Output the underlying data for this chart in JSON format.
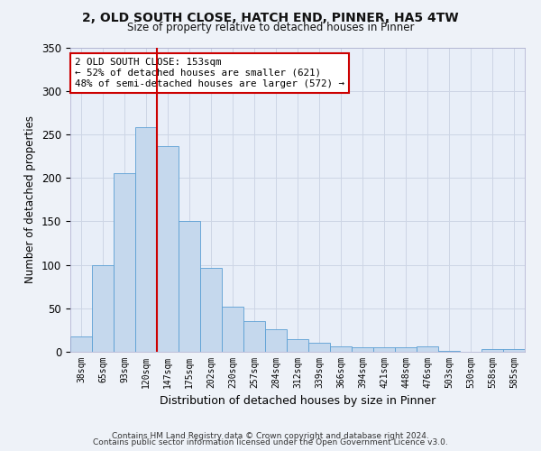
{
  "title_line1": "2, OLD SOUTH CLOSE, HATCH END, PINNER, HA5 4TW",
  "title_line2": "Size of property relative to detached houses in Pinner",
  "xlabel": "Distribution of detached houses by size in Pinner",
  "ylabel": "Number of detached properties",
  "categories": [
    "38sqm",
    "65sqm",
    "93sqm",
    "120sqm",
    "147sqm",
    "175sqm",
    "202sqm",
    "230sqm",
    "257sqm",
    "284sqm",
    "312sqm",
    "339sqm",
    "366sqm",
    "394sqm",
    "421sqm",
    "448sqm",
    "476sqm",
    "503sqm",
    "530sqm",
    "558sqm",
    "585sqm"
  ],
  "values": [
    18,
    100,
    205,
    258,
    236,
    150,
    96,
    52,
    35,
    26,
    15,
    10,
    6,
    5,
    5,
    5,
    6,
    1,
    0,
    3,
    3
  ],
  "bar_color": "#c5d8ed",
  "bar_edge_color": "#5a9fd4",
  "grid_color": "#cdd5e5",
  "background_color": "#e8eef8",
  "fig_background_color": "#eef2f8",
  "property_line_x": 3.5,
  "annotation_text": "2 OLD SOUTH CLOSE: 153sqm\n← 52% of detached houses are smaller (621)\n48% of semi-detached houses are larger (572) →",
  "annotation_box_color": "#ffffff",
  "annotation_box_edge": "#cc0000",
  "property_line_color": "#cc0000",
  "ylim": [
    0,
    350
  ],
  "yticks": [
    0,
    50,
    100,
    150,
    200,
    250,
    300,
    350
  ],
  "footnote_line1": "Contains HM Land Registry data © Crown copyright and database right 2024.",
  "footnote_line2": "Contains public sector information licensed under the Open Government Licence v3.0."
}
